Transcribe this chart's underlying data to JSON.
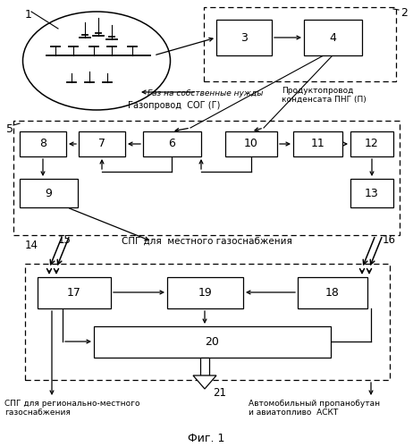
{
  "bg_color": "#ffffff",
  "title": "Фиг. 1",
  "text_gas_needs": "Газ на собственные нужды",
  "text_gazoprovod": "Газопровод  СОГ (Г)",
  "text_produkt": "Продуктопровод",
  "text_kondensata": "конденсата ПНГ (П)",
  "text_spg_local": "СПГ для  местного газоснабжения",
  "text_spg_reg1": "СПГ для регионально-местного",
  "text_spg_reg2": "газоснабжения",
  "text_avto": "Автомобильный пропанобутан",
  "text_avia": "и авиатопливо  АСКТ"
}
